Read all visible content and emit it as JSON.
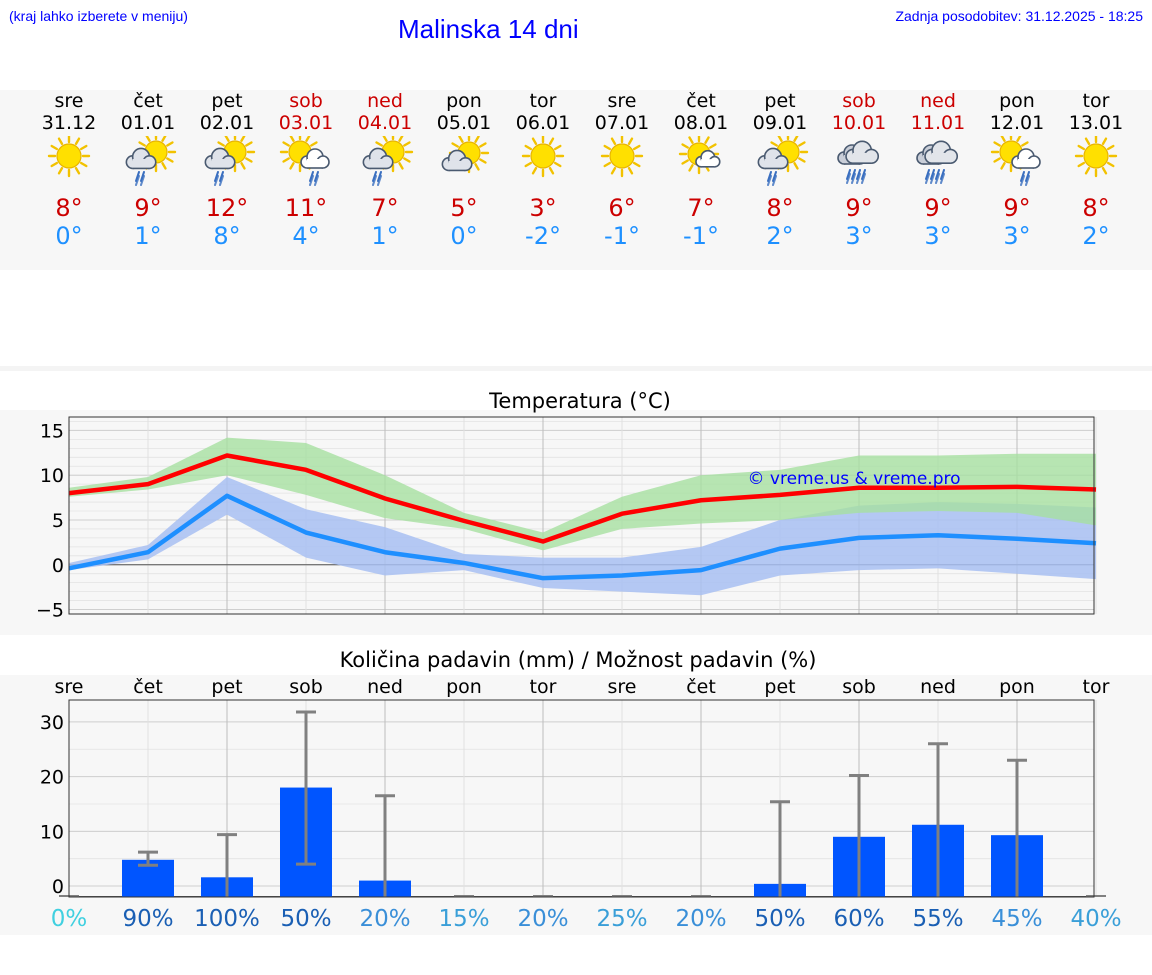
{
  "header": {
    "menu_hint": "(kraj lahko izberete v meniju)",
    "title": "Malinska 14 dni",
    "updated": "Zadnja posodobitev: 31.12.2025 - 18:25"
  },
  "forecast": {
    "days": [
      {
        "weekday": "sre",
        "date": "31.12",
        "max": "8°",
        "min": "0°",
        "icon": "sunny-icon",
        "weekend": false
      },
      {
        "weekday": "čet",
        "date": "01.01",
        "max": "9°",
        "min": "1°",
        "icon": "sun-cloud-rain-icon",
        "weekend": false
      },
      {
        "weekday": "pet",
        "date": "02.01",
        "max": "12°",
        "min": "8°",
        "icon": "sun-cloud-rain-icon",
        "weekend": false
      },
      {
        "weekday": "sob",
        "date": "03.01",
        "max": "11°",
        "min": "4°",
        "icon": "sun-cloud-light-rain-icon",
        "weekend": true
      },
      {
        "weekday": "ned",
        "date": "04.01",
        "max": "7°",
        "min": "1°",
        "icon": "sun-cloud-rain-icon",
        "weekend": true
      },
      {
        "weekday": "pon",
        "date": "05.01",
        "max": "5°",
        "min": "0°",
        "icon": "partly-cloudy-icon",
        "weekend": false
      },
      {
        "weekday": "tor",
        "date": "06.01",
        "max": "3°",
        "min": "-2°",
        "icon": "sunny-icon",
        "weekend": false
      },
      {
        "weekday": "sre",
        "date": "07.01",
        "max": "6°",
        "min": "-1°",
        "icon": "sunny-icon",
        "weekend": false
      },
      {
        "weekday": "čet",
        "date": "08.01",
        "max": "7°",
        "min": "-1°",
        "icon": "sun-small-cloud-icon",
        "weekend": false
      },
      {
        "weekday": "pet",
        "date": "09.01",
        "max": "8°",
        "min": "2°",
        "icon": "sun-cloud-rain-icon",
        "weekend": false
      },
      {
        "weekday": "sob",
        "date": "10.01",
        "max": "9°",
        "min": "3°",
        "icon": "cloud-rain-icon",
        "weekend": true
      },
      {
        "weekday": "ned",
        "date": "11.01",
        "max": "9°",
        "min": "3°",
        "icon": "cloud-rain-icon",
        "weekend": true
      },
      {
        "weekday": "pon",
        "date": "12.01",
        "max": "9°",
        "min": "3°",
        "icon": "sun-cloud-light-rain-icon",
        "weekend": false
      },
      {
        "weekday": "tor",
        "date": "13.01",
        "max": "8°",
        "min": "2°",
        "icon": "sunny-icon",
        "weekend": false
      }
    ]
  },
  "colors": {
    "title_blue": "#0000ff",
    "max_red": "#cc0000",
    "min_blue": "#1e90ff",
    "max_line": "#ff0000",
    "max_band": "#a6e0a0",
    "min_line": "#1e8fff",
    "min_band": "#a8c0f2",
    "bar": "#0055ff",
    "whisker": "#808080"
  },
  "chart_data": [
    {
      "type": "line",
      "title": "Temperatura (°C)",
      "xlabel": "",
      "ylabel": "",
      "ylim": [
        -5.5,
        16.5
      ],
      "yticks": [
        15,
        10,
        5,
        0,
        -5
      ],
      "ytick_labels": [
        "15",
        "10",
        "5",
        "0",
        "−5"
      ],
      "grid": true,
      "x": [
        0,
        1,
        2,
        3,
        4,
        5,
        6,
        7,
        8,
        9,
        10,
        11,
        12,
        13
      ],
      "watermark": "© vreme.us & vreme.pro",
      "series": [
        {
          "name": "max",
          "values": [
            8.0,
            9.0,
            12.2,
            10.6,
            7.4,
            4.9,
            2.6,
            5.7,
            7.2,
            7.8,
            8.6,
            8.6,
            8.7,
            8.4
          ],
          "band_low": [
            7.6,
            8.4,
            10.0,
            7.8,
            5.2,
            4.0,
            1.6,
            4.0,
            4.6,
            5.0,
            5.8,
            6.0,
            5.8,
            4.4
          ],
          "band_high": [
            8.6,
            9.8,
            14.2,
            13.6,
            10.0,
            5.8,
            3.6,
            7.6,
            10.0,
            10.6,
            12.2,
            12.2,
            12.4,
            12.4
          ]
        },
        {
          "name": "min",
          "values": [
            -0.4,
            1.4,
            7.7,
            3.6,
            1.4,
            0.2,
            -1.5,
            -1.2,
            -0.6,
            1.8,
            3.0,
            3.3,
            2.9,
            2.4
          ],
          "band_low": [
            -0.6,
            0.6,
            5.6,
            0.8,
            -1.2,
            -0.6,
            -2.6,
            -3.0,
            -3.4,
            -1.2,
            -0.6,
            -0.4,
            -1.0,
            -1.6
          ],
          "band_high": [
            0.2,
            2.2,
            9.8,
            6.2,
            4.2,
            1.2,
            0.8,
            0.8,
            2.0,
            5.0,
            6.6,
            7.0,
            6.8,
            6.4
          ]
        }
      ]
    },
    {
      "type": "bar",
      "title": "Količina padavin (mm) / Možnost padavin (%)",
      "xlabel": "",
      "ylabel": "",
      "ylim": [
        -2,
        34
      ],
      "yticks": [
        30,
        20,
        10,
        0
      ],
      "grid": true,
      "categories": [
        "sre",
        "čet",
        "pet",
        "sob",
        "ned",
        "pon",
        "tor",
        "sre",
        "čet",
        "pet",
        "sob",
        "ned",
        "pon",
        "tor"
      ],
      "values": [
        0,
        4.8,
        1.6,
        18.0,
        1.0,
        0,
        0,
        0,
        0,
        0.4,
        9.0,
        11.2,
        9.3,
        0
      ],
      "err_low": [
        0,
        3.8,
        0,
        4.0,
        0,
        0,
        0,
        0,
        0,
        0,
        0,
        0,
        0,
        0
      ],
      "err_high": [
        0,
        6.2,
        9.4,
        31.8,
        16.5,
        0,
        0,
        0,
        0,
        15.4,
        20.2,
        26.0,
        23.0,
        0
      ],
      "probability_labels": [
        "0%",
        "90%",
        "100%",
        "50%",
        "20%",
        "15%",
        "20%",
        "25%",
        "20%",
        "50%",
        "60%",
        "55%",
        "45%",
        "40%"
      ],
      "probability_colors": [
        "#40d0e0",
        "#1a5fb4",
        "#1a5fb4",
        "#1a5fb4",
        "#3a8fd8",
        "#3a9fd8",
        "#3a8fd8",
        "#3a9fd8",
        "#3a8fd8",
        "#1a5fb4",
        "#1a5fb4",
        "#1a5fb4",
        "#3a8fd8",
        "#3a9fd8"
      ]
    }
  ]
}
